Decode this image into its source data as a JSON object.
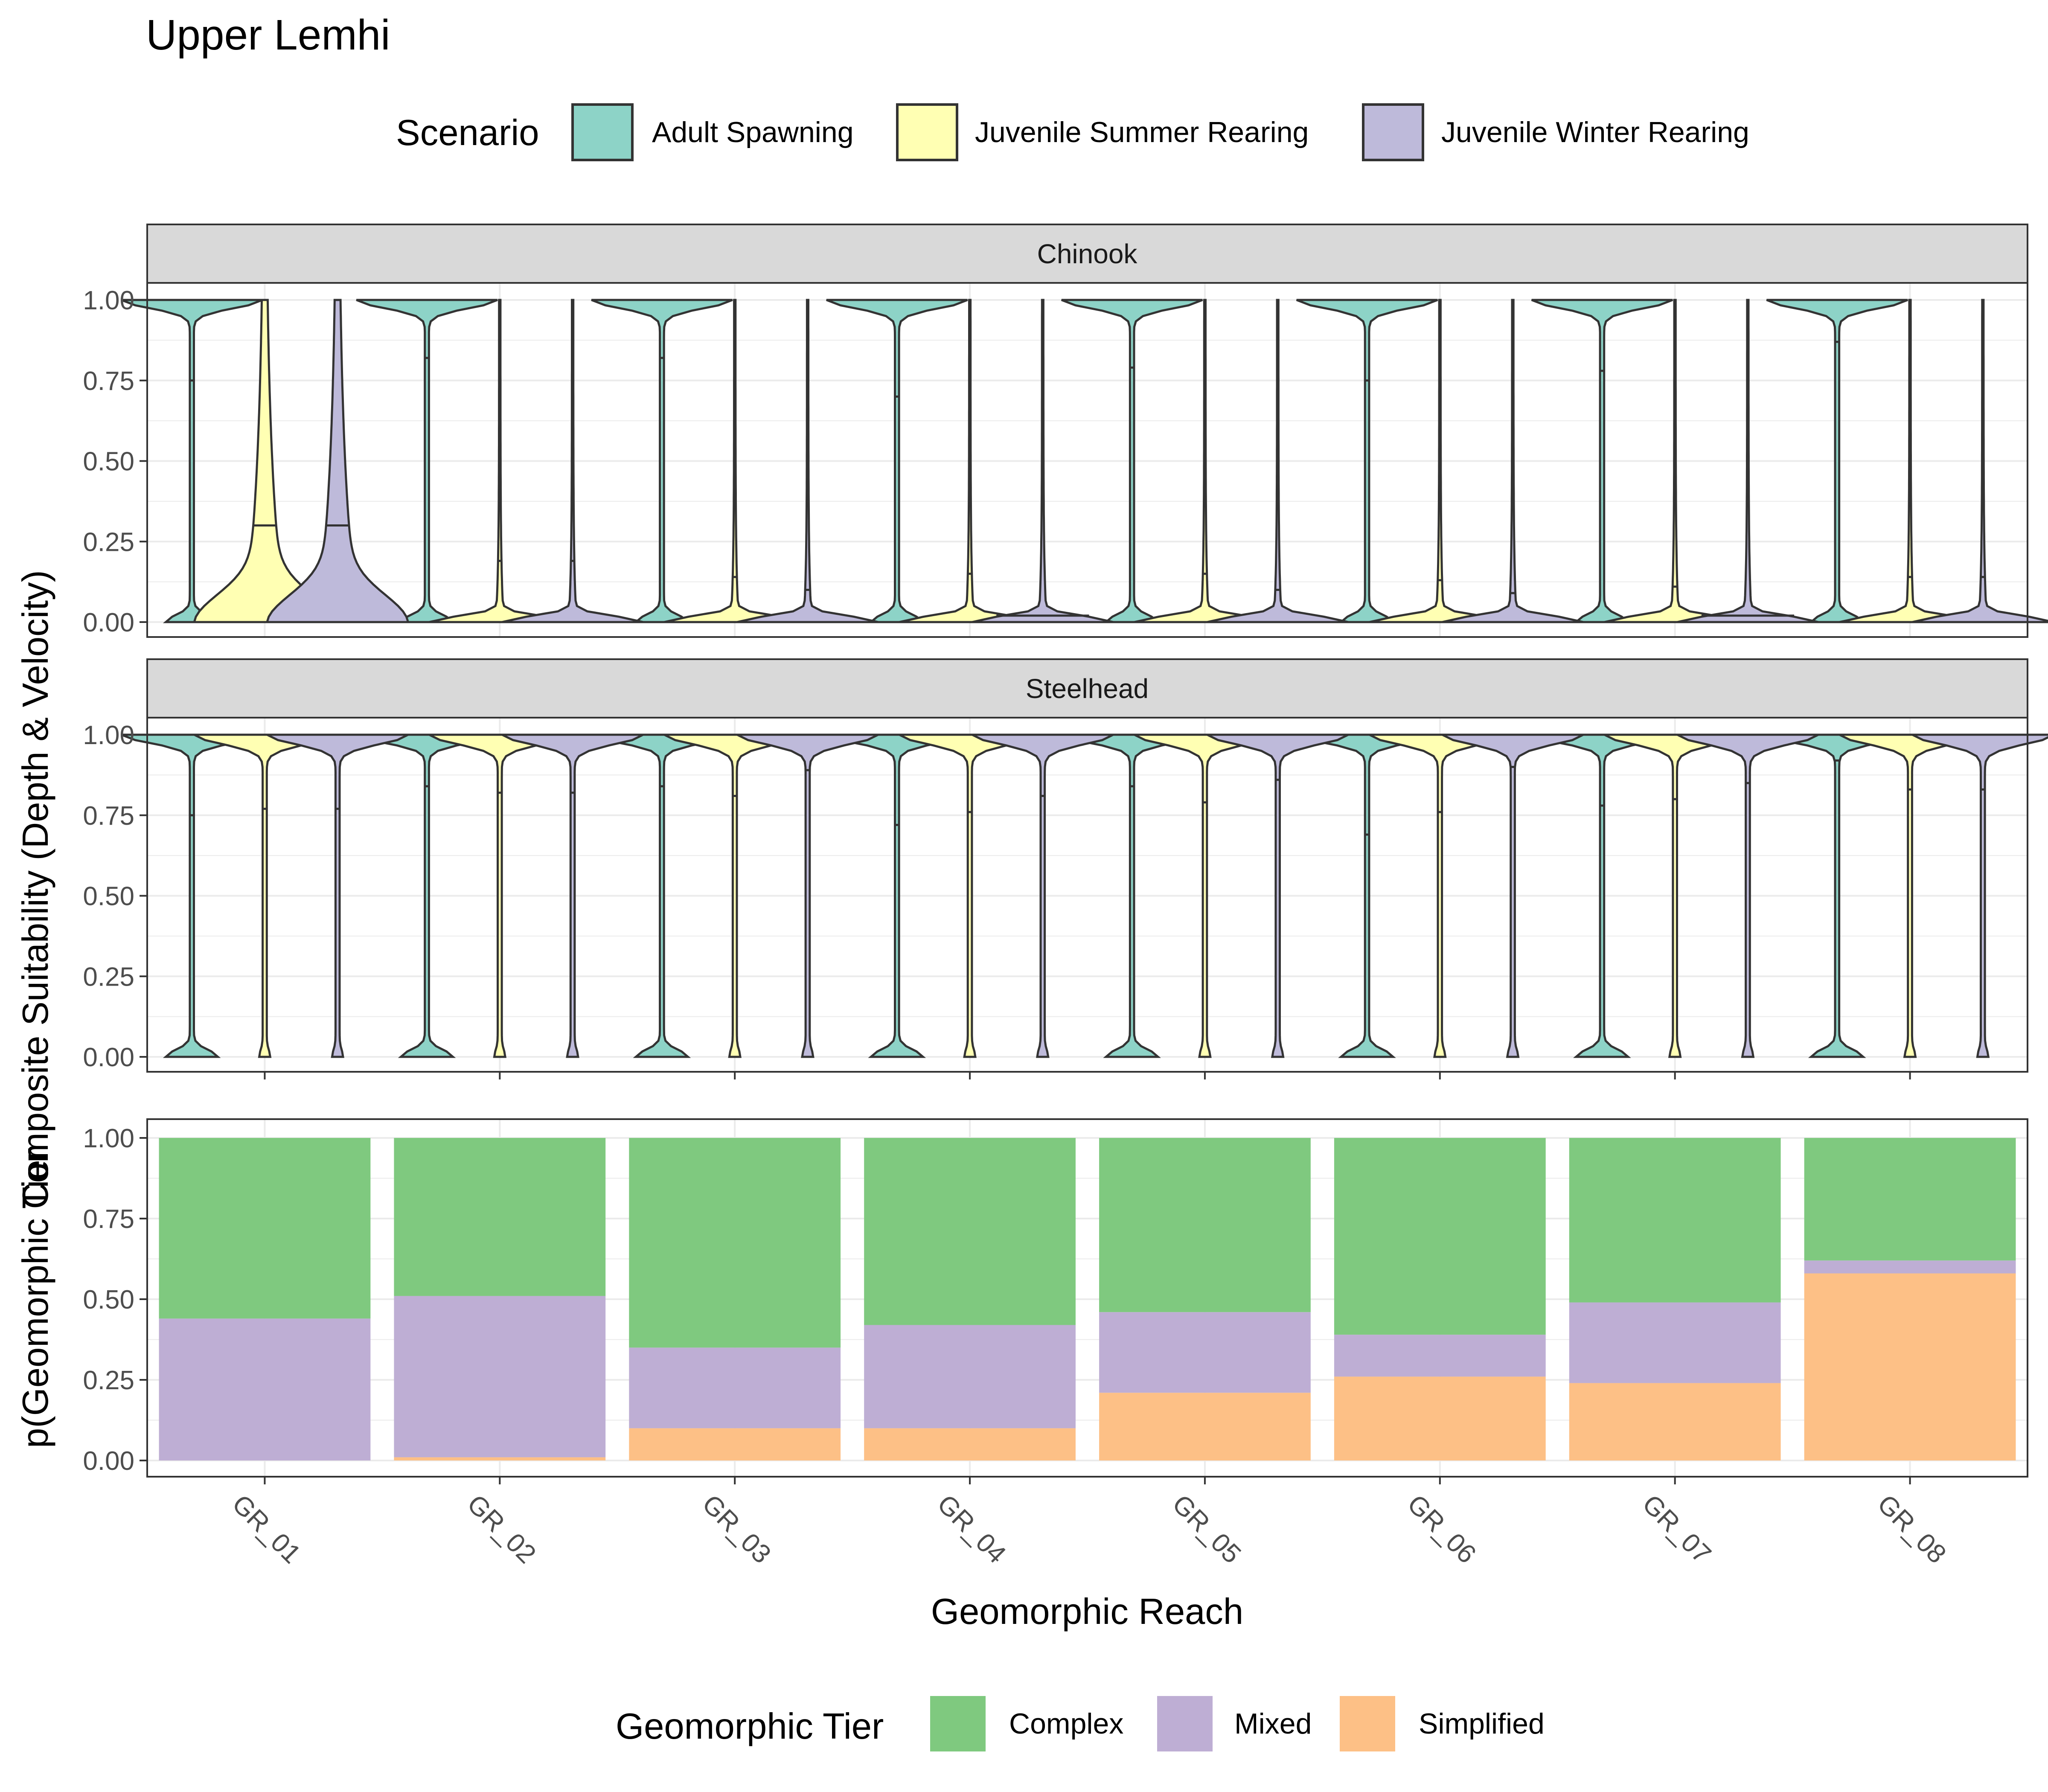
{
  "title": "Upper Lemhi",
  "scenario_legend": {
    "title": "Scenario",
    "items": [
      {
        "label": "Adult Spawning",
        "color": "#8DD3C7"
      },
      {
        "label": "Juvenile Summer Rearing",
        "color": "#FFFFB3"
      },
      {
        "label": "Juvenile Winter Rearing",
        "color": "#BEBADA"
      }
    ]
  },
  "tier_legend": {
    "title": "Geomorphic Tier",
    "items": [
      {
        "label": "Complex",
        "color": "#7FC97F"
      },
      {
        "label": "Mixed",
        "color": "#BEAED4"
      },
      {
        "label": "Simplified",
        "color": "#FDC086"
      }
    ]
  },
  "xlabel": "Geomorphic Reach",
  "ylabel_top": "Composite Suitability (Depth & Velocity)",
  "ylabel_bottom": "p(Geomorphic Tier",
  "chart_data": [
    {
      "type": "violin",
      "facet": "Chinook",
      "categories": [
        "GR_01",
        "GR_02",
        "GR_03",
        "GR_04",
        "GR_05",
        "GR_06",
        "GR_07",
        "GR_08"
      ],
      "ylim": [
        0,
        1
      ],
      "yticks": [
        "0.00",
        "0.25",
        "0.50",
        "0.75",
        "1.00"
      ],
      "series": [
        {
          "name": "Adult Spawning",
          "medians": [
            0.75,
            0.82,
            0.82,
            0.7,
            0.79,
            0.75,
            0.78,
            0.87
          ]
        },
        {
          "name": "Juvenile Summer Rearing",
          "medians": [
            0.3,
            0.19,
            0.14,
            0.15,
            0.15,
            0.13,
            0.11,
            0.14
          ]
        },
        {
          "name": "Juvenile Winter Rearing",
          "medians": [
            0.3,
            0.19,
            0.1,
            0.02,
            0.1,
            0.09,
            0.02,
            0.14
          ]
        }
      ]
    },
    {
      "type": "violin",
      "facet": "Steelhead",
      "categories": [
        "GR_01",
        "GR_02",
        "GR_03",
        "GR_04",
        "GR_05",
        "GR_06",
        "GR_07",
        "GR_08"
      ],
      "ylim": [
        0,
        1
      ],
      "yticks": [
        "0.00",
        "0.25",
        "0.50",
        "0.75",
        "1.00"
      ],
      "series": [
        {
          "name": "Adult Spawning",
          "medians": [
            0.75,
            0.84,
            0.84,
            0.72,
            0.84,
            0.69,
            0.78,
            0.92
          ]
        },
        {
          "name": "Juvenile Summer Rearing",
          "medians": [
            0.77,
            0.82,
            0.81,
            0.76,
            0.79,
            0.76,
            0.8,
            0.83
          ]
        },
        {
          "name": "Juvenile Winter Rearing",
          "medians": [
            0.77,
            0.82,
            0.89,
            0.81,
            0.86,
            0.9,
            0.85,
            0.83
          ]
        }
      ]
    },
    {
      "type": "bar",
      "stacked": true,
      "categories": [
        "GR_01",
        "GR_02",
        "GR_03",
        "GR_04",
        "GR_05",
        "GR_06",
        "GR_07",
        "GR_08"
      ],
      "ylim": [
        0,
        1
      ],
      "yticks": [
        "0.00",
        "0.25",
        "0.50",
        "0.75",
        "1.00"
      ],
      "series": [
        {
          "name": "Simplified",
          "values": [
            0.0,
            0.01,
            0.1,
            0.1,
            0.21,
            0.26,
            0.24,
            0.58
          ]
        },
        {
          "name": "Mixed",
          "values": [
            0.44,
            0.5,
            0.25,
            0.32,
            0.25,
            0.13,
            0.25,
            0.04
          ]
        },
        {
          "name": "Complex",
          "values": [
            0.56,
            0.49,
            0.65,
            0.58,
            0.54,
            0.61,
            0.51,
            0.38
          ]
        }
      ]
    }
  ]
}
